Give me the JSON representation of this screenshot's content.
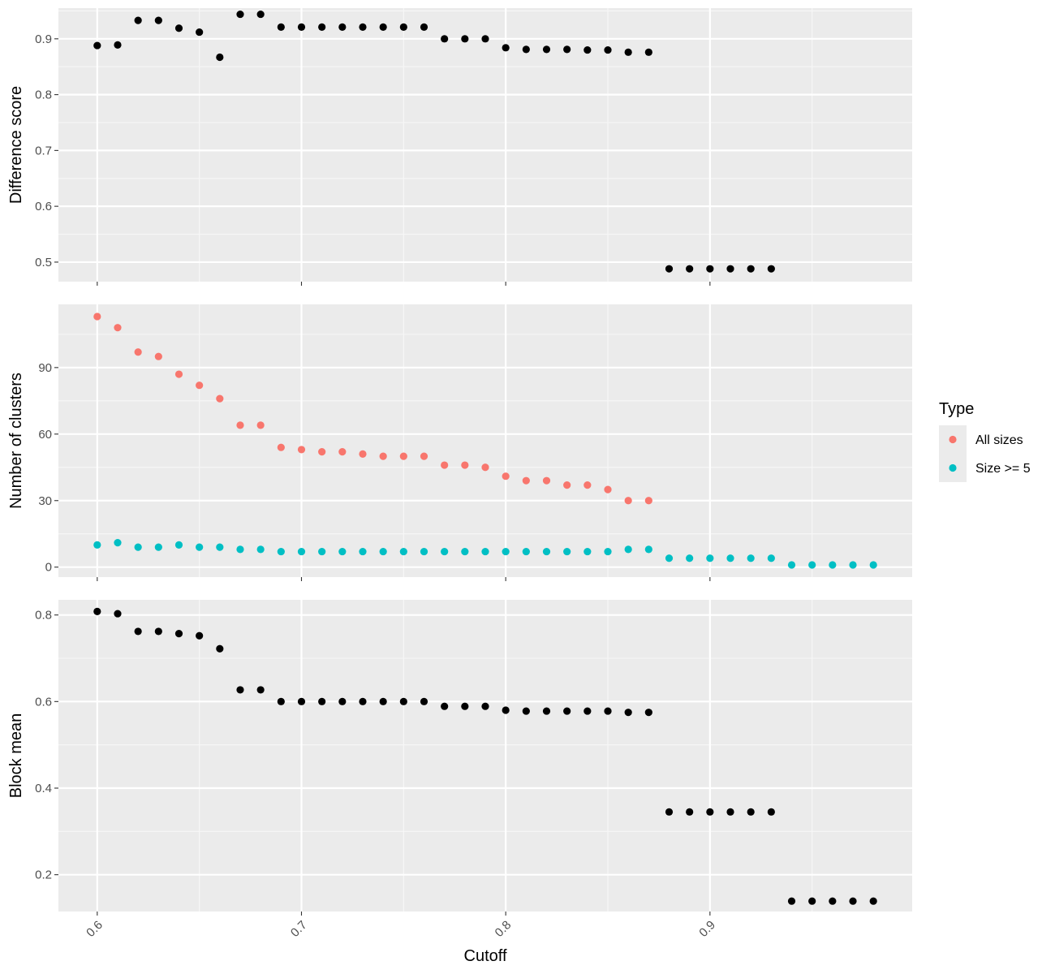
{
  "chart_data": [
    {
      "type": "scatter",
      "title": "",
      "xlabel": "",
      "ylabel": "Difference score",
      "xlim": [
        0.581,
        0.999
      ],
      "ylim": [
        0.465,
        0.955
      ],
      "yticks": [
        0.5,
        0.6,
        0.7,
        0.8,
        0.9
      ],
      "ytick_labels": [
        "0.5",
        "0.6",
        "0.7",
        "0.8",
        "0.9"
      ],
      "xticks": [
        0.6,
        0.7,
        0.8,
        0.9
      ],
      "grid": true,
      "series": [
        {
          "color": "#000000",
          "x": [
            0.6,
            0.61,
            0.62,
            0.63,
            0.64,
            0.65,
            0.66,
            0.67,
            0.68,
            0.69,
            0.7,
            0.71,
            0.72,
            0.73,
            0.74,
            0.75,
            0.76,
            0.77,
            0.78,
            0.79,
            0.8,
            0.81,
            0.82,
            0.83,
            0.84,
            0.85,
            0.86,
            0.87,
            0.88,
            0.89,
            0.9,
            0.91,
            0.92,
            0.93
          ],
          "y": [
            0.888,
            0.889,
            0.933,
            0.933,
            0.919,
            0.912,
            0.867,
            0.944,
            0.944,
            0.921,
            0.921,
            0.921,
            0.921,
            0.921,
            0.921,
            0.921,
            0.921,
            0.9,
            0.9,
            0.9,
            0.884,
            0.881,
            0.881,
            0.881,
            0.88,
            0.88,
            0.876,
            0.876,
            0.488,
            0.488,
            0.488,
            0.488,
            0.488,
            0.488
          ]
        }
      ]
    },
    {
      "type": "scatter",
      "title": "",
      "xlabel": "",
      "ylabel": "Number of clusters",
      "xlim": [
        0.581,
        0.999
      ],
      "ylim": [
        -4.5,
        118.5
      ],
      "yticks": [
        0,
        30,
        60,
        90
      ],
      "ytick_labels": [
        "0",
        "30",
        "60",
        "90"
      ],
      "xticks": [
        0.6,
        0.7,
        0.8,
        0.9
      ],
      "grid": true,
      "legend": {
        "title": "Type",
        "position": "right"
      },
      "series": [
        {
          "name": "All sizes",
          "color": "#F8766D",
          "x": [
            0.6,
            0.61,
            0.62,
            0.63,
            0.64,
            0.65,
            0.66,
            0.67,
            0.68,
            0.69,
            0.7,
            0.71,
            0.72,
            0.73,
            0.74,
            0.75,
            0.76,
            0.77,
            0.78,
            0.79,
            0.8,
            0.81,
            0.82,
            0.83,
            0.84,
            0.85,
            0.86,
            0.87
          ],
          "y": [
            113,
            108,
            97,
            95,
            87,
            82,
            76,
            64,
            64,
            54,
            53,
            52,
            52,
            51,
            50,
            50,
            50,
            46,
            46,
            45,
            41,
            39,
            39,
            37,
            37,
            35,
            30,
            30
          ]
        },
        {
          "name": "Size >= 5",
          "color": "#00BFC4",
          "x": [
            0.6,
            0.61,
            0.62,
            0.63,
            0.64,
            0.65,
            0.66,
            0.67,
            0.68,
            0.69,
            0.7,
            0.71,
            0.72,
            0.73,
            0.74,
            0.75,
            0.76,
            0.77,
            0.78,
            0.79,
            0.8,
            0.81,
            0.82,
            0.83,
            0.84,
            0.85,
            0.86,
            0.87,
            0.88,
            0.89,
            0.9,
            0.91,
            0.92,
            0.93,
            0.94,
            0.95,
            0.96,
            0.97,
            0.98
          ],
          "y": [
            10,
            11,
            9,
            9,
            10,
            9,
            9,
            8,
            8,
            7,
            7,
            7,
            7,
            7,
            7,
            7,
            7,
            7,
            7,
            7,
            7,
            7,
            7,
            7,
            7,
            7,
            8,
            8,
            4,
            4,
            4,
            4,
            4,
            4,
            1,
            1,
            1,
            1,
            1
          ]
        }
      ]
    },
    {
      "type": "scatter",
      "title": "",
      "xlabel": "Cutoff",
      "ylabel": "Block mean",
      "xlim": [
        0.581,
        0.999
      ],
      "ylim": [
        0.115,
        0.835
      ],
      "yticks": [
        0.2,
        0.4,
        0.6,
        0.8
      ],
      "ytick_labels": [
        "0.2",
        "0.4",
        "0.6",
        "0.8"
      ],
      "xticks": [
        0.6,
        0.7,
        0.8,
        0.9
      ],
      "xtick_labels": [
        "0.6",
        "0.7",
        "0.8",
        "0.9"
      ],
      "grid": true,
      "series": [
        {
          "color": "#000000",
          "x": [
            0.6,
            0.61,
            0.62,
            0.63,
            0.64,
            0.65,
            0.66,
            0.67,
            0.68,
            0.69,
            0.7,
            0.71,
            0.72,
            0.73,
            0.74,
            0.75,
            0.76,
            0.77,
            0.78,
            0.79,
            0.8,
            0.81,
            0.82,
            0.83,
            0.84,
            0.85,
            0.86,
            0.87,
            0.88,
            0.89,
            0.9,
            0.91,
            0.92,
            0.93,
            0.94,
            0.95,
            0.96,
            0.97,
            0.98
          ],
          "y": [
            0.808,
            0.803,
            0.762,
            0.762,
            0.757,
            0.752,
            0.722,
            0.627,
            0.627,
            0.6,
            0.6,
            0.6,
            0.6,
            0.6,
            0.6,
            0.6,
            0.6,
            0.589,
            0.589,
            0.589,
            0.58,
            0.578,
            0.578,
            0.578,
            0.578,
            0.578,
            0.575,
            0.575,
            0.345,
            0.345,
            0.345,
            0.345,
            0.345,
            0.345,
            0.139,
            0.139,
            0.139,
            0.139,
            0.139
          ]
        }
      ]
    }
  ]
}
